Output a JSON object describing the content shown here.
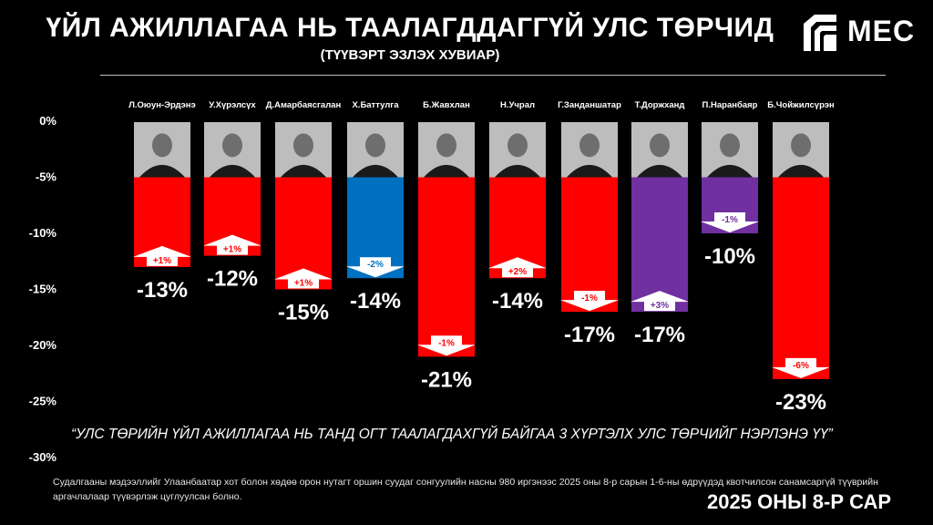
{
  "title": "ҮЙЛ АЖИЛЛАГАА НЬ ТААЛАГДДАГГҮЙ УЛС ТӨРЧИД",
  "subtitle": "(ТҮҮВЭРТ ЭЗЛЭХ ХУВИАР)",
  "logo_text": "MEC",
  "question": "“УЛС ТӨРИЙН ҮЙЛ АЖИЛЛАГАА НЬ ТАНД ОГТ ТААЛАГДАХГҮЙ БАЙГАА 3 ХҮРТЭЛХ УЛС ТӨРЧИЙГ НЭРЛЭНЭ ҮҮ”",
  "footnote": "Судалгааны мэдээллийг Улаанбаатар хот болон хөдөө орон нутагт оршин суудаг сонгуулийн насны 980 иргэнээс 2025 оны 8-р сарын 1-6-ны өдрүүдэд квотчилсон санамсаргүй түүврийн аргачлалаар түүвэрлэж цуглуулсан болно.",
  "date_stamp": "2025 ОНЫ 8-Р САР",
  "colors": {
    "red": "#ff0000",
    "blue": "#0070c0",
    "purple": "#7030a0",
    "background": "#000000"
  },
  "chart_data": {
    "type": "bar",
    "ylim": [
      -30,
      0
    ],
    "yticks": [
      0,
      -5,
      -10,
      -15,
      -20,
      -25,
      -30
    ],
    "ytick_labels": [
      "0%",
      "-5%",
      "-10%",
      "-15%",
      "-20%",
      "-25%",
      "-30%"
    ],
    "grid": false,
    "categories": [
      "Л.Оюун-Эрдэнэ",
      "У.Хүрэлсүх",
      "Д.Амарбаясгалан",
      "Х.Баттулга",
      "Б.Жавхлан",
      "Н.Учрал",
      "Г.Занданшатар",
      "Т.Доржханд",
      "П.Наранбаяр",
      "Б.Чойжилсүрэн"
    ],
    "values": [
      -13,
      -12,
      -15,
      -14,
      -21,
      -14,
      -17,
      -17,
      -10,
      -23
    ],
    "value_labels": [
      "-13%",
      "-12%",
      "-15%",
      "-14%",
      "-21%",
      "-14%",
      "-17%",
      "-17%",
      "-10%",
      "-23%"
    ],
    "bar_colors": [
      "red",
      "red",
      "red",
      "blue",
      "red",
      "red",
      "red",
      "purple",
      "purple",
      "red"
    ],
    "changes": [
      {
        "label": "+1%",
        "direction": "up"
      },
      {
        "label": "+1%",
        "direction": "up"
      },
      {
        "label": "+1%",
        "direction": "up"
      },
      {
        "label": "-2%",
        "direction": "down"
      },
      {
        "label": "-1%",
        "direction": "down"
      },
      {
        "label": "+2%",
        "direction": "up"
      },
      {
        "label": "-1%",
        "direction": "down"
      },
      {
        "label": "+3%",
        "direction": "up"
      },
      {
        "label": "-1%",
        "direction": "down"
      },
      {
        "label": "-6%",
        "direction": "down"
      }
    ]
  }
}
